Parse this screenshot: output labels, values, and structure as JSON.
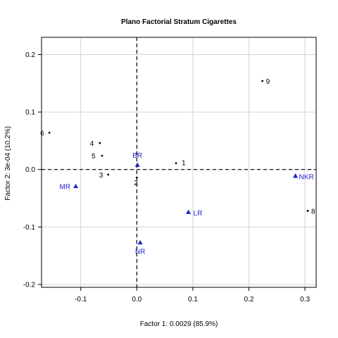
{
  "chart_data": {
    "type": "scatter",
    "title": "Plano Factorial Stratum Cigarettes",
    "xlabel": "Factor 1: 0.0029 (85.9%)",
    "ylabel": "Factor 2: 3e-04 (10.2%)",
    "xlim": [
      -0.17,
      0.32
    ],
    "ylim": [
      -0.205,
      0.23
    ],
    "xticks": [
      -0.1,
      0.0,
      0.1,
      0.2,
      0.3
    ],
    "xtick_labels": [
      "-0.1",
      "0.0",
      "0.1",
      "0.2",
      "0.3"
    ],
    "yticks": [
      -0.2,
      -0.1,
      0.0,
      0.1,
      0.2
    ],
    "ytick_labels": [
      "-0.2",
      "-0.1",
      "0.0",
      "0.1",
      "0.2"
    ],
    "grid": true,
    "reference_lines": {
      "x": 0,
      "y": 0,
      "style": "dashed"
    },
    "series": [
      {
        "name": "",
        "marker": "dot",
        "color": "#000000",
        "points": [
          {
            "label": "1",
            "x": 0.07,
            "y": 0.011
          },
          {
            "label": "2",
            "x": 0.0,
            "y": -0.014
          },
          {
            "label": "3",
            "x": -0.051,
            "y": -0.009
          },
          {
            "label": "4",
            "x": -0.066,
            "y": 0.046
          },
          {
            "label": "5",
            "x": -0.062,
            "y": 0.024
          },
          {
            "label": "6",
            "x": -0.156,
            "y": 0.064
          },
          {
            "label": "8",
            "x": 0.305,
            "y": -0.072
          },
          {
            "label": "9",
            "x": 0.224,
            "y": 0.154
          }
        ]
      },
      {
        "name": "",
        "marker": "triangle",
        "color": "#2020cc",
        "points": [
          {
            "label": "BR",
            "x": 0.001,
            "y": 0.008
          },
          {
            "label": "MR",
            "x": -0.109,
            "y": -0.029
          },
          {
            "label": "LR",
            "x": 0.092,
            "y": -0.074
          },
          {
            "label": "NR",
            "x": 0.006,
            "y": -0.127
          },
          {
            "label": "NKR",
            "x": 0.283,
            "y": -0.011
          }
        ]
      }
    ]
  }
}
